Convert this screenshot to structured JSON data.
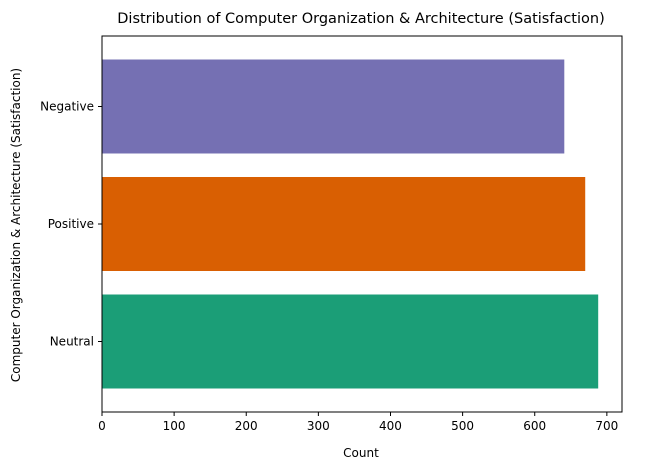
{
  "chart_data": {
    "type": "bar",
    "orientation": "horizontal",
    "title": "Distribution of Computer Organization & Architecture (Satisfaction)",
    "xlabel": "Count",
    "ylabel": "Computer Organization & Architecture (Satisfaction)",
    "categories": [
      "Neutral",
      "Positive",
      "Negative"
    ],
    "values": [
      688,
      670,
      641
    ],
    "colors": [
      "#1b9e77",
      "#d95f02",
      "#7570b3"
    ],
    "xlim": [
      0,
      721
    ],
    "xticks": [
      0,
      100,
      200,
      300,
      400,
      500,
      600,
      700
    ],
    "grid": false,
    "legend": "none"
  }
}
